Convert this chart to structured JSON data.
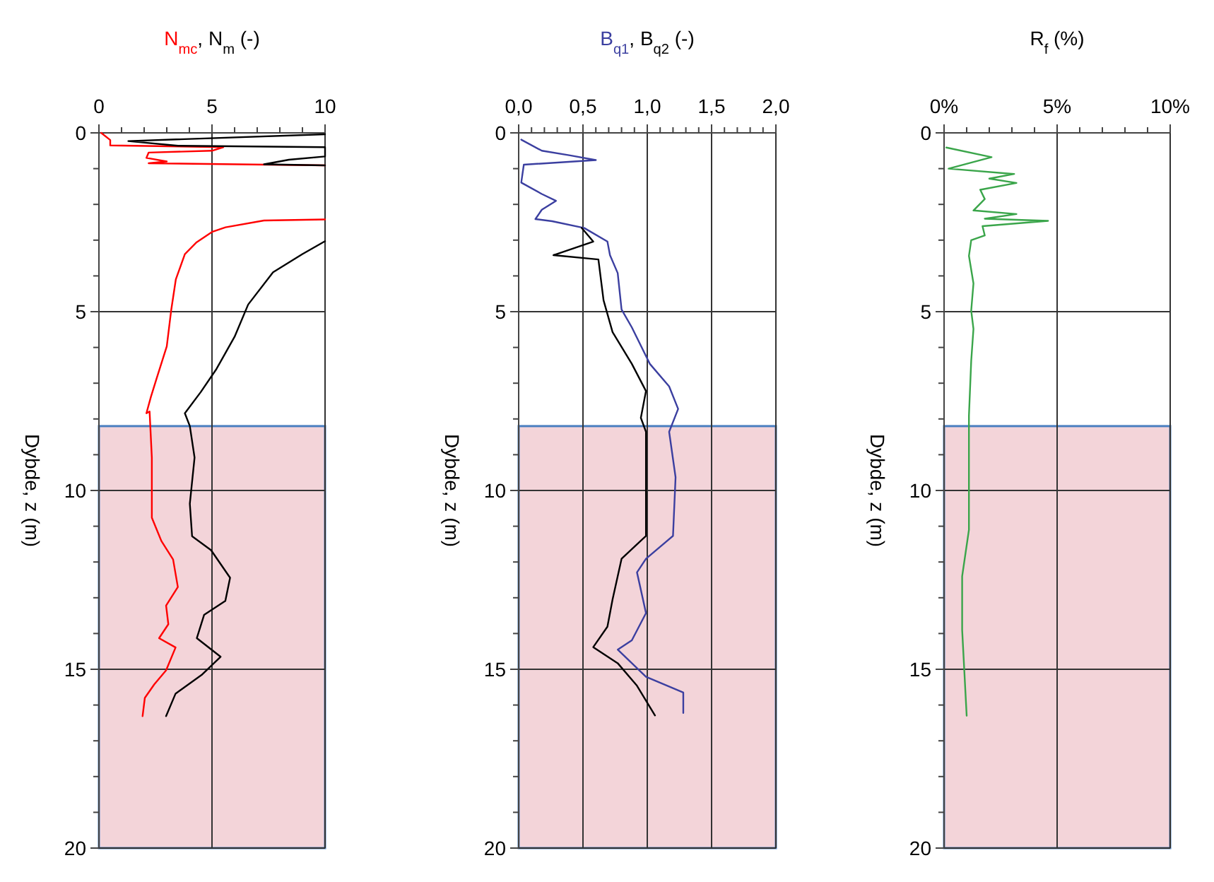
{
  "chart_data": [
    {
      "type": "line",
      "xlabel": "N$_{mc}$, N$_{m}$ (-)",
      "ylabel": "Dybde, z (m)",
      "xlim": [
        0,
        10
      ],
      "ylim": [
        20,
        0
      ],
      "grid": true,
      "xticks": [
        0,
        {
          "value": 1,
          "label": null
        },
        {
          "value": 2,
          "label": null
        },
        {
          "value": 3,
          "label": null
        },
        {
          "value": 4,
          "label": null
        },
        5,
        {
          "value": 6,
          "label": null
        },
        {
          "value": 7,
          "label": null
        },
        {
          "value": 8,
          "label": null
        },
        {
          "value": 9,
          "label": null
        },
        10
      ],
      "yticks": [
        0,
        {
          "value": 1,
          "label": null
        },
        {
          "value": 2,
          "label": null
        },
        {
          "value": 3,
          "label": null
        },
        {
          "value": 4,
          "label": null
        },
        5,
        {
          "value": 6,
          "label": null
        },
        {
          "value": 7,
          "label": null
        },
        {
          "value": 8,
          "label": null
        },
        {
          "value": 9,
          "label": null
        },
        10,
        {
          "value": 11,
          "label": null
        },
        {
          "value": 12,
          "label": null
        },
        {
          "value": 13,
          "label": null
        },
        {
          "value": 14,
          "label": null
        },
        15,
        {
          "value": 16,
          "label": null
        },
        {
          "value": 17,
          "label": null
        },
        {
          "value": 18,
          "label": null
        },
        {
          "value": 19,
          "label": null
        },
        20
      ],
      "bands": [
        {
          "axis": "y",
          "from": 8.2,
          "to": 20,
          "color": "#f3d4d9"
        }
      ],
      "series": [
        {
          "color": "#ff0000",
          "x": [
            0.1,
            0.5,
            0.5,
            5.5,
            5.0,
            2.2,
            2.1,
            3.0,
            2.2,
            10,
            null,
            10,
            7.3,
            5.6,
            5.0,
            4.3,
            3.8,
            3.4,
            3.2,
            3.0,
            2.55,
            2.3,
            2.1,
            2.24,
            2.34,
            2.34,
            2.76,
            3.28,
            3.49,
            2.97,
            3.07,
            2.66,
            3.39,
            2.97,
            2.45,
            2.03,
            1.93
          ],
          "values": [
            0,
            0.2,
            0.35,
            0.4,
            0.5,
            0.55,
            0.7,
            0.8,
            0.85,
            0.91,
            null,
            2.42,
            2.45,
            2.64,
            2.77,
            3.07,
            3.39,
            4.1,
            4.94,
            5.97,
            6.87,
            7.38,
            7.84,
            7.79,
            9.08,
            10.76,
            11.41,
            11.93,
            12.7,
            13.22,
            13.74,
            14.13,
            14.39,
            15.03,
            15.42,
            15.8,
            16.31
          ]
        },
        {
          "color": "#000000",
          "x": [
            10,
            1.3,
            3.5,
            10,
            10,
            8.4,
            7.3,
            10,
            null,
            10,
            9.0,
            7.7,
            6.6,
            6.0,
            5.2,
            4.5,
            3.8,
            4.02,
            4.23,
            4.02,
            4.12,
            4.96,
            5.8,
            5.59,
            4.65,
            4.33,
            5.38,
            4.54,
            3.39,
            2.97
          ],
          "values": [
            0.04,
            0.23,
            0.36,
            0.4,
            0.66,
            0.75,
            0.88,
            0.91,
            null,
            3.03,
            3.39,
            3.9,
            4.8,
            5.7,
            6.6,
            7.25,
            7.84,
            8.2,
            9.08,
            10.37,
            11.28,
            11.67,
            12.44,
            13.09,
            13.48,
            14.13,
            14.65,
            15.16,
            15.68,
            16.31
          ]
        }
      ]
    },
    {
      "type": "line",
      "xlabel": "B$_{q1}$, B$_{q2}$ (-)",
      "ylabel": "Dybde, z (m)",
      "xlim": [
        0,
        2
      ],
      "ylim": [
        20,
        0
      ],
      "grid": true,
      "xticks": [
        {
          "value": 0,
          "label": "0,0"
        },
        {
          "value": 0.1,
          "label": null
        },
        {
          "value": 0.2,
          "label": null
        },
        {
          "value": 0.3,
          "label": null
        },
        {
          "value": 0.4,
          "label": null
        },
        {
          "value": 0.5,
          "label": "0,5"
        },
        {
          "value": 0.6,
          "label": null
        },
        {
          "value": 0.7,
          "label": null
        },
        {
          "value": 0.8,
          "label": null
        },
        {
          "value": 0.9,
          "label": null
        },
        {
          "value": 1,
          "label": "1,0"
        },
        {
          "value": 1.1,
          "label": null
        },
        {
          "value": 1.2,
          "label": null
        },
        {
          "value": 1.3,
          "label": null
        },
        {
          "value": 1.4,
          "label": null
        },
        {
          "value": 1.5,
          "label": "1,5"
        },
        {
          "value": 1.6,
          "label": null
        },
        {
          "value": 1.7,
          "label": null
        },
        {
          "value": 1.8,
          "label": null
        },
        {
          "value": 1.9,
          "label": null
        },
        {
          "value": 2,
          "label": "2,0"
        }
      ],
      "yticks": [
        0,
        {
          "value": 1,
          "label": null
        },
        {
          "value": 2,
          "label": null
        },
        {
          "value": 3,
          "label": null
        },
        {
          "value": 4,
          "label": null
        },
        5,
        {
          "value": 6,
          "label": null
        },
        {
          "value": 7,
          "label": null
        },
        {
          "value": 8,
          "label": null
        },
        {
          "value": 9,
          "label": null
        },
        10,
        {
          "value": 11,
          "label": null
        },
        {
          "value": 12,
          "label": null
        },
        {
          "value": 13,
          "label": null
        },
        {
          "value": 14,
          "label": null
        },
        15,
        {
          "value": 16,
          "label": null
        },
        {
          "value": 17,
          "label": null
        },
        {
          "value": 18,
          "label": null
        },
        {
          "value": 19,
          "label": null
        },
        20
      ],
      "bands": [
        {
          "axis": "y",
          "from": 8.2,
          "to": 20,
          "color": "#f3d4d9"
        }
      ],
      "series": [
        {
          "color": "#3b3fa0",
          "x": [
            0.02,
            0.18,
            0.4,
            0.6,
            0.04,
            0.02,
            0.18,
            0.29,
            0.18,
            0.13,
            0.26,
            0.51,
            0.69,
            0.71,
            0.77,
            0.8,
            0.88,
            1.02,
            1.17,
            1.24,
            1.17,
            1.22,
            1.2,
            0.99,
            0.92,
            0.99,
            0.88,
            0.77,
            0.99,
            1.28,
            1.28
          ],
          "values": [
            0.19,
            0.5,
            0.63,
            0.76,
            0.89,
            1.39,
            1.71,
            1.9,
            2.15,
            2.41,
            2.47,
            2.66,
            3.04,
            3.42,
            3.92,
            4.94,
            5.44,
            6.46,
            7.09,
            7.72,
            8.36,
            9.63,
            11.27,
            11.91,
            12.29,
            13.43,
            14.19,
            14.45,
            15.21,
            15.65,
            16.22
          ]
        },
        {
          "color": "#000000",
          "x": [
            0.49,
            0.58,
            0.27,
            0.62,
            0.66,
            0.73,
            0.88,
            0.99,
            0.95,
            0.99,
            0.99,
            0.99,
            0.8,
            0.73,
            0.69,
            0.58,
            0.77,
            0.92,
            1.06
          ],
          "values": [
            2.66,
            3.04,
            3.42,
            3.54,
            4.68,
            5.57,
            6.46,
            7.22,
            7.97,
            8.36,
            10.52,
            11.27,
            11.91,
            13.05,
            13.81,
            14.38,
            14.83,
            15.46,
            16.29
          ]
        }
      ]
    },
    {
      "type": "line",
      "xlabel": "R$_{f}$ (%)",
      "ylabel": "Dybde, z (m)",
      "xlim": [
        0,
        10
      ],
      "ylim": [
        20,
        0
      ],
      "grid": true,
      "xticks": [
        {
          "value": 0,
          "label": "0%"
        },
        {
          "value": 1,
          "label": null
        },
        {
          "value": 2,
          "label": null
        },
        {
          "value": 3,
          "label": null
        },
        {
          "value": 4,
          "label": null
        },
        {
          "value": 5,
          "label": "5%"
        },
        {
          "value": 6,
          "label": null
        },
        {
          "value": 7,
          "label": null
        },
        {
          "value": 8,
          "label": null
        },
        {
          "value": 9,
          "label": null
        },
        {
          "value": 10,
          "label": "10%"
        }
      ],
      "yticks": [
        0,
        {
          "value": 1,
          "label": null
        },
        {
          "value": 2,
          "label": null
        },
        {
          "value": 3,
          "label": null
        },
        {
          "value": 4,
          "label": null
        },
        5,
        {
          "value": 6,
          "label": null
        },
        {
          "value": 7,
          "label": null
        },
        {
          "value": 8,
          "label": null
        },
        {
          "value": 9,
          "label": null
        },
        10,
        {
          "value": 11,
          "label": null
        },
        {
          "value": 12,
          "label": null
        },
        {
          "value": 13,
          "label": null
        },
        {
          "value": 14,
          "label": null
        },
        15,
        {
          "value": 16,
          "label": null
        },
        {
          "value": 17,
          "label": null
        },
        {
          "value": 18,
          "label": null
        },
        {
          "value": 19,
          "label": null
        },
        20
      ],
      "bands": [
        {
          "axis": "y",
          "from": 8.2,
          "to": 20,
          "color": "#f3d4d9"
        }
      ],
      "series": [
        {
          "color": "#3aa54a",
          "x": [
            0.1,
            2.1,
            0.2,
            3.1,
            2.0,
            3.2,
            1.6,
            1.8,
            1.3,
            3.2,
            1.8,
            4.6,
            1.7,
            1.8,
            1.2,
            1.1,
            1.3,
            1.2,
            1.3,
            1.2,
            1.1,
            1.1,
            1.1,
            0.8,
            0.8,
            0.9,
            1.0
          ],
          "values": [
            0.41,
            0.68,
            1.0,
            1.15,
            1.28,
            1.4,
            1.59,
            1.85,
            2.17,
            2.27,
            2.4,
            2.46,
            2.61,
            2.87,
            3.0,
            3.44,
            4.21,
            4.97,
            5.48,
            6.38,
            7.91,
            9.0,
            11.1,
            12.4,
            13.9,
            15.1,
            16.3
          ]
        }
      ]
    }
  ]
}
